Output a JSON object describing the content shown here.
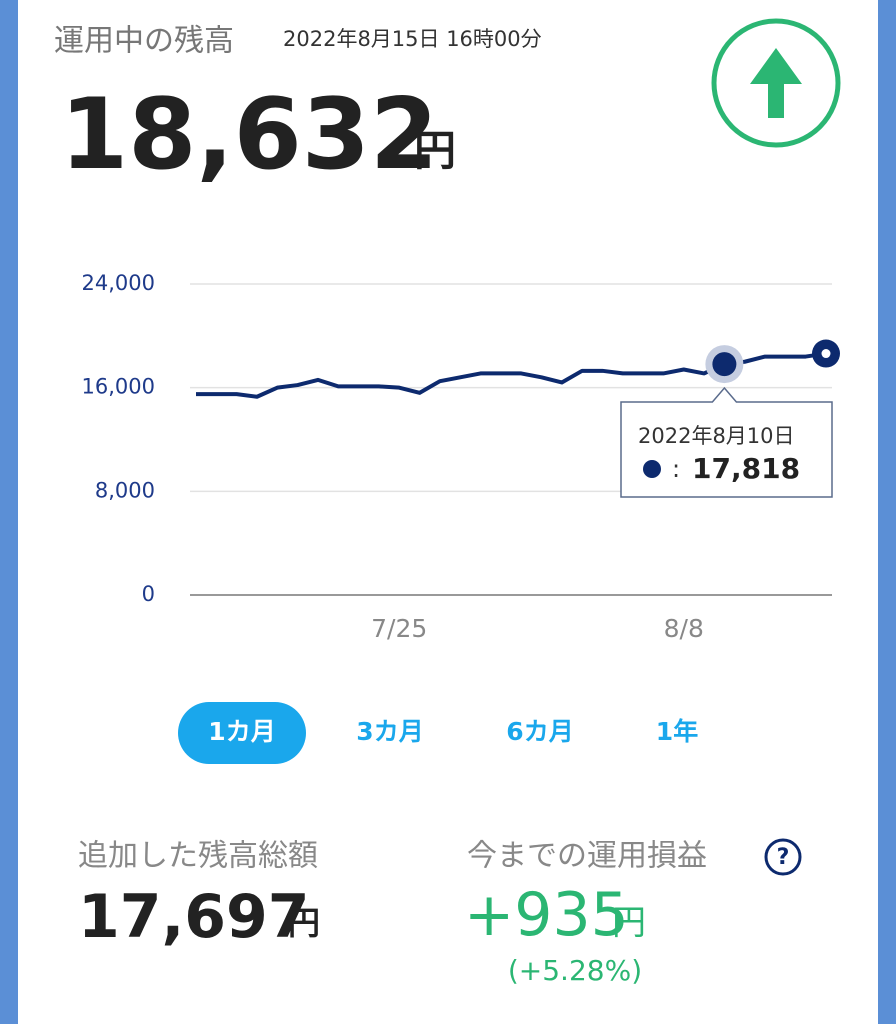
{
  "header": {
    "title": "運用中の残高",
    "timestamp": "2022年8月15日 16時00分",
    "balance": "18,632",
    "unit": "円"
  },
  "chart_data": {
    "type": "line",
    "x": [
      null,
      null,
      null,
      null,
      null,
      null,
      null,
      null,
      null,
      null,
      "7/25",
      null,
      null,
      null,
      null,
      null,
      null,
      null,
      null,
      null,
      null,
      null,
      null,
      null,
      "8/8",
      null,
      null,
      null,
      null,
      null,
      null,
      null
    ],
    "series": [
      {
        "color": "#0d2a6e",
        "values": [
          15500,
          15500,
          15500,
          15300,
          16000,
          16200,
          16600,
          16100,
          16100,
          16100,
          16000,
          15600,
          16500,
          16800,
          17100,
          17100,
          17100,
          16800,
          16400,
          17300,
          17300,
          17100,
          17100,
          17100,
          17400,
          17100,
          17818,
          18000,
          18400,
          18400,
          18400,
          18632
        ],
        "value_labels": [
          null,
          null,
          null,
          null,
          null,
          null,
          null,
          null,
          null,
          null,
          null,
          null,
          null,
          null,
          null,
          null,
          null,
          null,
          null,
          null,
          null,
          null,
          null,
          null,
          null,
          null,
          "17,818",
          null,
          null,
          null,
          null,
          null
        ]
      }
    ],
    "tooltip_title": "2022年8月10日",
    "ylim": [
      0,
      24000
    ],
    "yticks": [
      0,
      {
        "value": 8000,
        "label": "8,000"
      },
      {
        "value": 16000,
        "label": "16,000"
      },
      {
        "value": 24000,
        "label": "24,000"
      }
    ],
    "grid": true
  },
  "period_tabs": {
    "options": [
      "1カ月",
      "3カ月",
      "6カ月",
      "1年"
    ],
    "active": 0
  },
  "summary": {
    "deposit_label": "追加した残高総額",
    "deposit_value": "17,697",
    "deposit_unit": "円",
    "profit_label": "今までの運用損益",
    "profit_help": "?",
    "profit_value": "+935",
    "profit_unit": "円",
    "profit_rate": "(+5.28%)"
  }
}
